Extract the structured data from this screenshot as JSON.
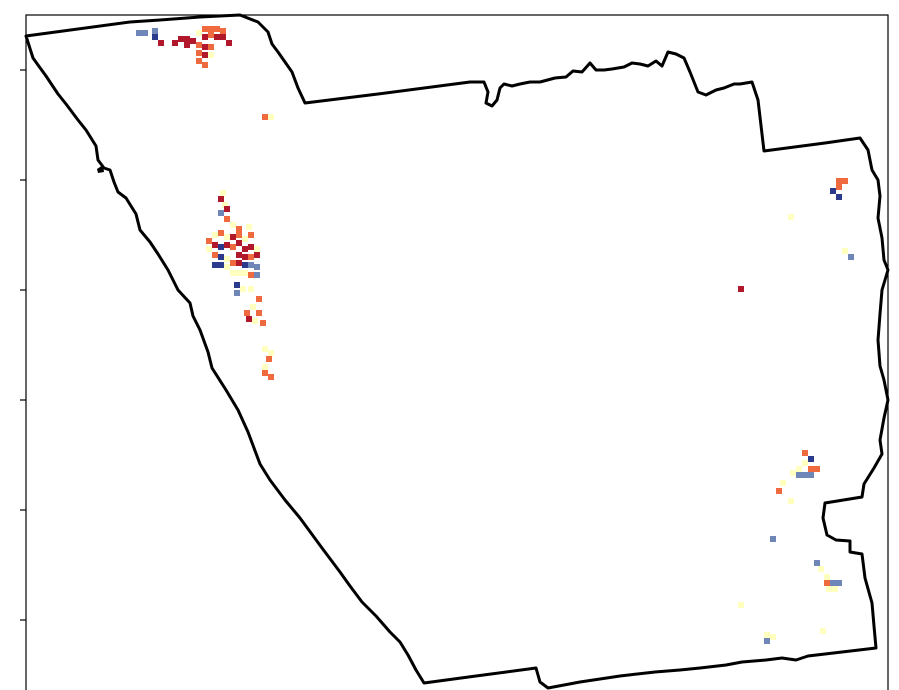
{
  "map": {
    "type": "heatmap",
    "boundary_color": "#000000",
    "colors": {
      "dark_red": "#b2182b",
      "orange": "#ef6a3f",
      "light_yellow": "#ffffbf",
      "dark_blue": "#2b3a8c",
      "slate_blue": "#6f86b8"
    },
    "y_ticks": 6
  }
}
